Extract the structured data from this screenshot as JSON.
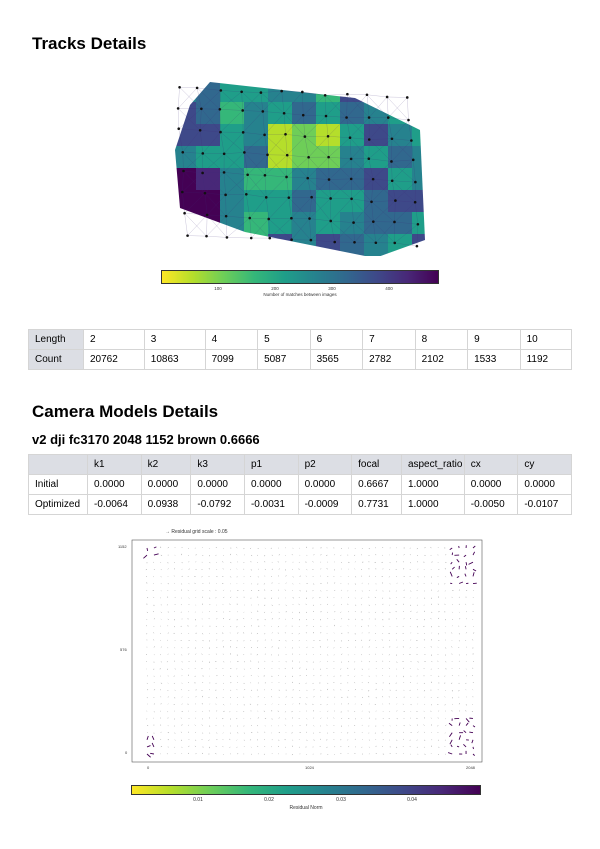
{
  "tracks": {
    "title": "Tracks Details",
    "colorbar": {
      "label": "Number of matches between images",
      "ticks": [
        "100",
        "200",
        "300",
        "400"
      ]
    },
    "table": {
      "row_labels": [
        "Length",
        "Count"
      ],
      "lengths": [
        "2",
        "3",
        "4",
        "5",
        "6",
        "7",
        "8",
        "9",
        "10"
      ],
      "counts": [
        "20762",
        "10863",
        "7099",
        "5087",
        "3565",
        "2782",
        "2102",
        "1533",
        "1192"
      ]
    }
  },
  "camera": {
    "title": "Camera Models Details",
    "model_name": "v2 dji fc3170 2048 1152 brown 0.6666",
    "table": {
      "headers": [
        "",
        "k1",
        "k2",
        "k3",
        "p1",
        "p2",
        "focal",
        "aspect_ratio",
        "cx",
        "cy"
      ],
      "rows": [
        [
          "Initial",
          "0.0000",
          "0.0000",
          "0.0000",
          "0.0000",
          "0.0000",
          "0.6667",
          "1.0000",
          "0.0000",
          "0.0000"
        ],
        [
          "Optimized",
          "-0.0064",
          "0.0938",
          "-0.0792",
          "-0.0031",
          "-0.0009",
          "0.7731",
          "1.0000",
          "-0.0050",
          "-0.0107"
        ]
      ]
    }
  },
  "residual": {
    "legend": "Residual grid scale : 0.05",
    "x_ticks": [
      "0",
      "1024",
      "2048"
    ],
    "y_ticks": [
      "1152",
      "576",
      "0"
    ],
    "colorbar": {
      "label": "Residual Norm",
      "ticks": [
        "0.01",
        "0.02",
        "0.03",
        "0.04"
      ]
    }
  },
  "colors": {
    "viridis": [
      "#fde725",
      "#b5de2b",
      "#6ece58",
      "#35b779",
      "#1f9e89",
      "#26828e",
      "#31688e",
      "#3e4989",
      "#482878",
      "#440154"
    ]
  }
}
